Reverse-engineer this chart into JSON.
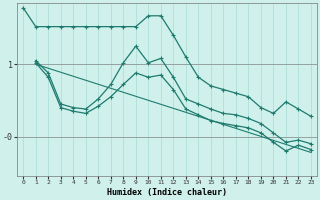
{
  "title": "",
  "xlabel": "Humidex (Indice chaleur)",
  "bg_color": "#cff0eb",
  "line_color": "#1e7b6e",
  "grid_color": "#a8ddd8",
  "x_ticks": [
    0,
    1,
    2,
    3,
    4,
    5,
    6,
    7,
    8,
    9,
    10,
    11,
    12,
    13,
    14,
    15,
    16,
    17,
    18,
    19,
    20,
    21,
    22,
    23
  ],
  "ylim": [
    -0.55,
    1.85
  ],
  "xlim": [
    -0.5,
    23.5
  ],
  "ytick_vals": [
    0.0,
    1.0
  ],
  "ytick_labels": [
    "-0",
    "1"
  ],
  "line1_x": [
    0,
    1,
    2,
    3,
    4,
    5,
    6,
    7,
    8,
    9,
    10,
    11,
    12,
    13,
    14,
    15,
    16,
    17,
    18,
    19,
    20,
    21,
    22,
    23
  ],
  "line1_y": [
    1.78,
    1.52,
    1.52,
    1.52,
    1.52,
    1.52,
    1.52,
    1.52,
    1.52,
    1.52,
    1.67,
    1.67,
    1.4,
    1.1,
    0.82,
    0.7,
    0.65,
    0.6,
    0.55,
    0.4,
    0.32,
    0.48,
    0.38,
    0.28
  ],
  "line2_x": [
    1,
    2,
    3,
    4,
    5,
    6,
    7,
    8,
    9,
    10,
    11,
    12,
    13,
    14,
    15,
    16,
    17,
    18,
    19,
    20,
    21,
    22,
    23
  ],
  "line2_y": [
    1.05,
    0.88,
    0.45,
    0.4,
    0.38,
    0.52,
    0.72,
    1.02,
    1.25,
    1.02,
    1.08,
    0.82,
    0.52,
    0.45,
    0.38,
    0.32,
    0.3,
    0.25,
    0.18,
    0.05,
    -0.08,
    -0.05,
    -0.1
  ],
  "line3_x": [
    1,
    2,
    3,
    4,
    5,
    6,
    7,
    8,
    9,
    10,
    11,
    12,
    13,
    14,
    15,
    16,
    17,
    18,
    19,
    20,
    21,
    22,
    23
  ],
  "line3_y": [
    1.02,
    0.82,
    0.4,
    0.35,
    0.32,
    0.42,
    0.55,
    0.72,
    0.88,
    0.82,
    0.85,
    0.65,
    0.38,
    0.3,
    0.22,
    0.18,
    0.15,
    0.12,
    0.05,
    -0.08,
    -0.2,
    -0.12,
    -0.18
  ],
  "trend_x": [
    1,
    23
  ],
  "trend_y": [
    1.0,
    -0.22
  ]
}
